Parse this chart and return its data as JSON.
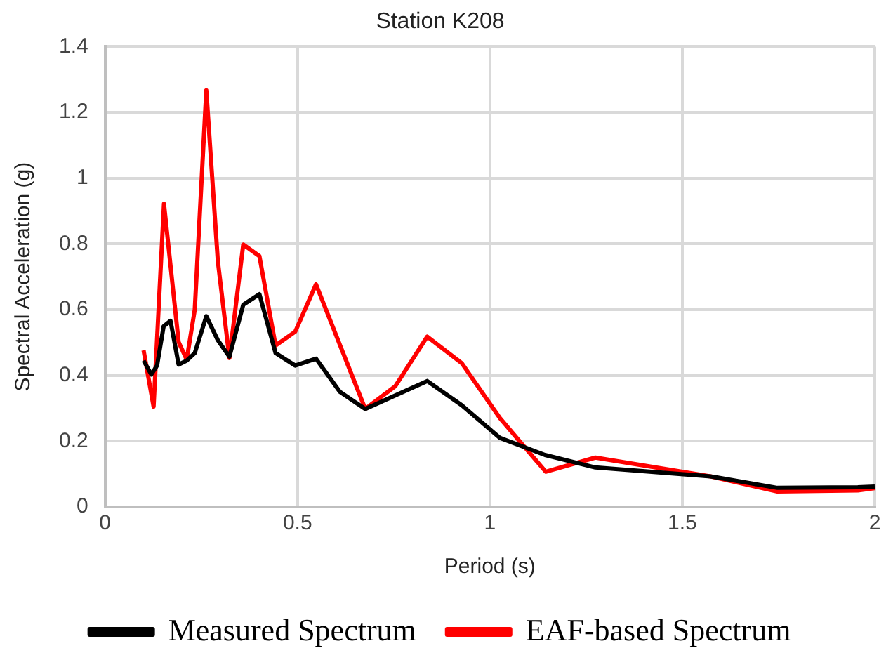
{
  "chart_data": {
    "type": "line",
    "title": "Station K208",
    "xlabel": "Period (s)",
    "ylabel": "Spectral Acceleration (g)",
    "xlim": [
      0,
      2
    ],
    "xticks": [
      0,
      0.5,
      1,
      1.5,
      2
    ],
    "ylim": [
      0,
      1.4
    ],
    "yticks": [
      0,
      0.2,
      0.4,
      0.6,
      0.8,
      1,
      1.2,
      1.4
    ],
    "grid": true,
    "legend": "bottom",
    "marker": "none",
    "line_style": "solid",
    "series": [
      {
        "name": "Measured Spectrum",
        "color": "#000000",
        "x": [
          0.1,
          0.12,
          0.135,
          0.152,
          0.17,
          0.191,
          0.212,
          0.233,
          0.263,
          0.293,
          0.323,
          0.359,
          0.401,
          0.443,
          0.494,
          0.548,
          0.61,
          0.676,
          0.837,
          0.927,
          1.026,
          1.143,
          1.274,
          1.573,
          1.747,
          1.956,
          2
        ],
        "values": [
          0.445,
          0.403,
          0.43,
          0.549,
          0.566,
          0.433,
          0.445,
          0.468,
          0.58,
          0.507,
          0.457,
          0.615,
          0.647,
          0.468,
          0.43,
          0.451,
          0.35,
          0.298,
          0.383,
          0.309,
          0.21,
          0.158,
          0.12,
          0.093,
          0.058,
          0.06,
          0.062
        ]
      },
      {
        "name": "EAF-based Spectrum",
        "color": "#ff0000",
        "x": [
          0.1,
          0.126,
          0.153,
          0.191,
          0.212,
          0.233,
          0.263,
          0.293,
          0.323,
          0.359,
          0.401,
          0.443,
          0.494,
          0.548,
          0.676,
          0.754,
          0.837,
          0.927,
          1.026,
          1.145,
          1.274,
          1.573,
          1.747,
          1.956,
          2
        ],
        "values": [
          0.476,
          0.305,
          0.922,
          0.502,
          0.448,
          0.6,
          1.267,
          0.747,
          0.453,
          0.798,
          0.763,
          0.491,
          0.533,
          0.677,
          0.298,
          0.367,
          0.518,
          0.437,
          0.27,
          0.107,
          0.15,
          0.093,
          0.047,
          0.05,
          0.057
        ]
      }
    ]
  }
}
